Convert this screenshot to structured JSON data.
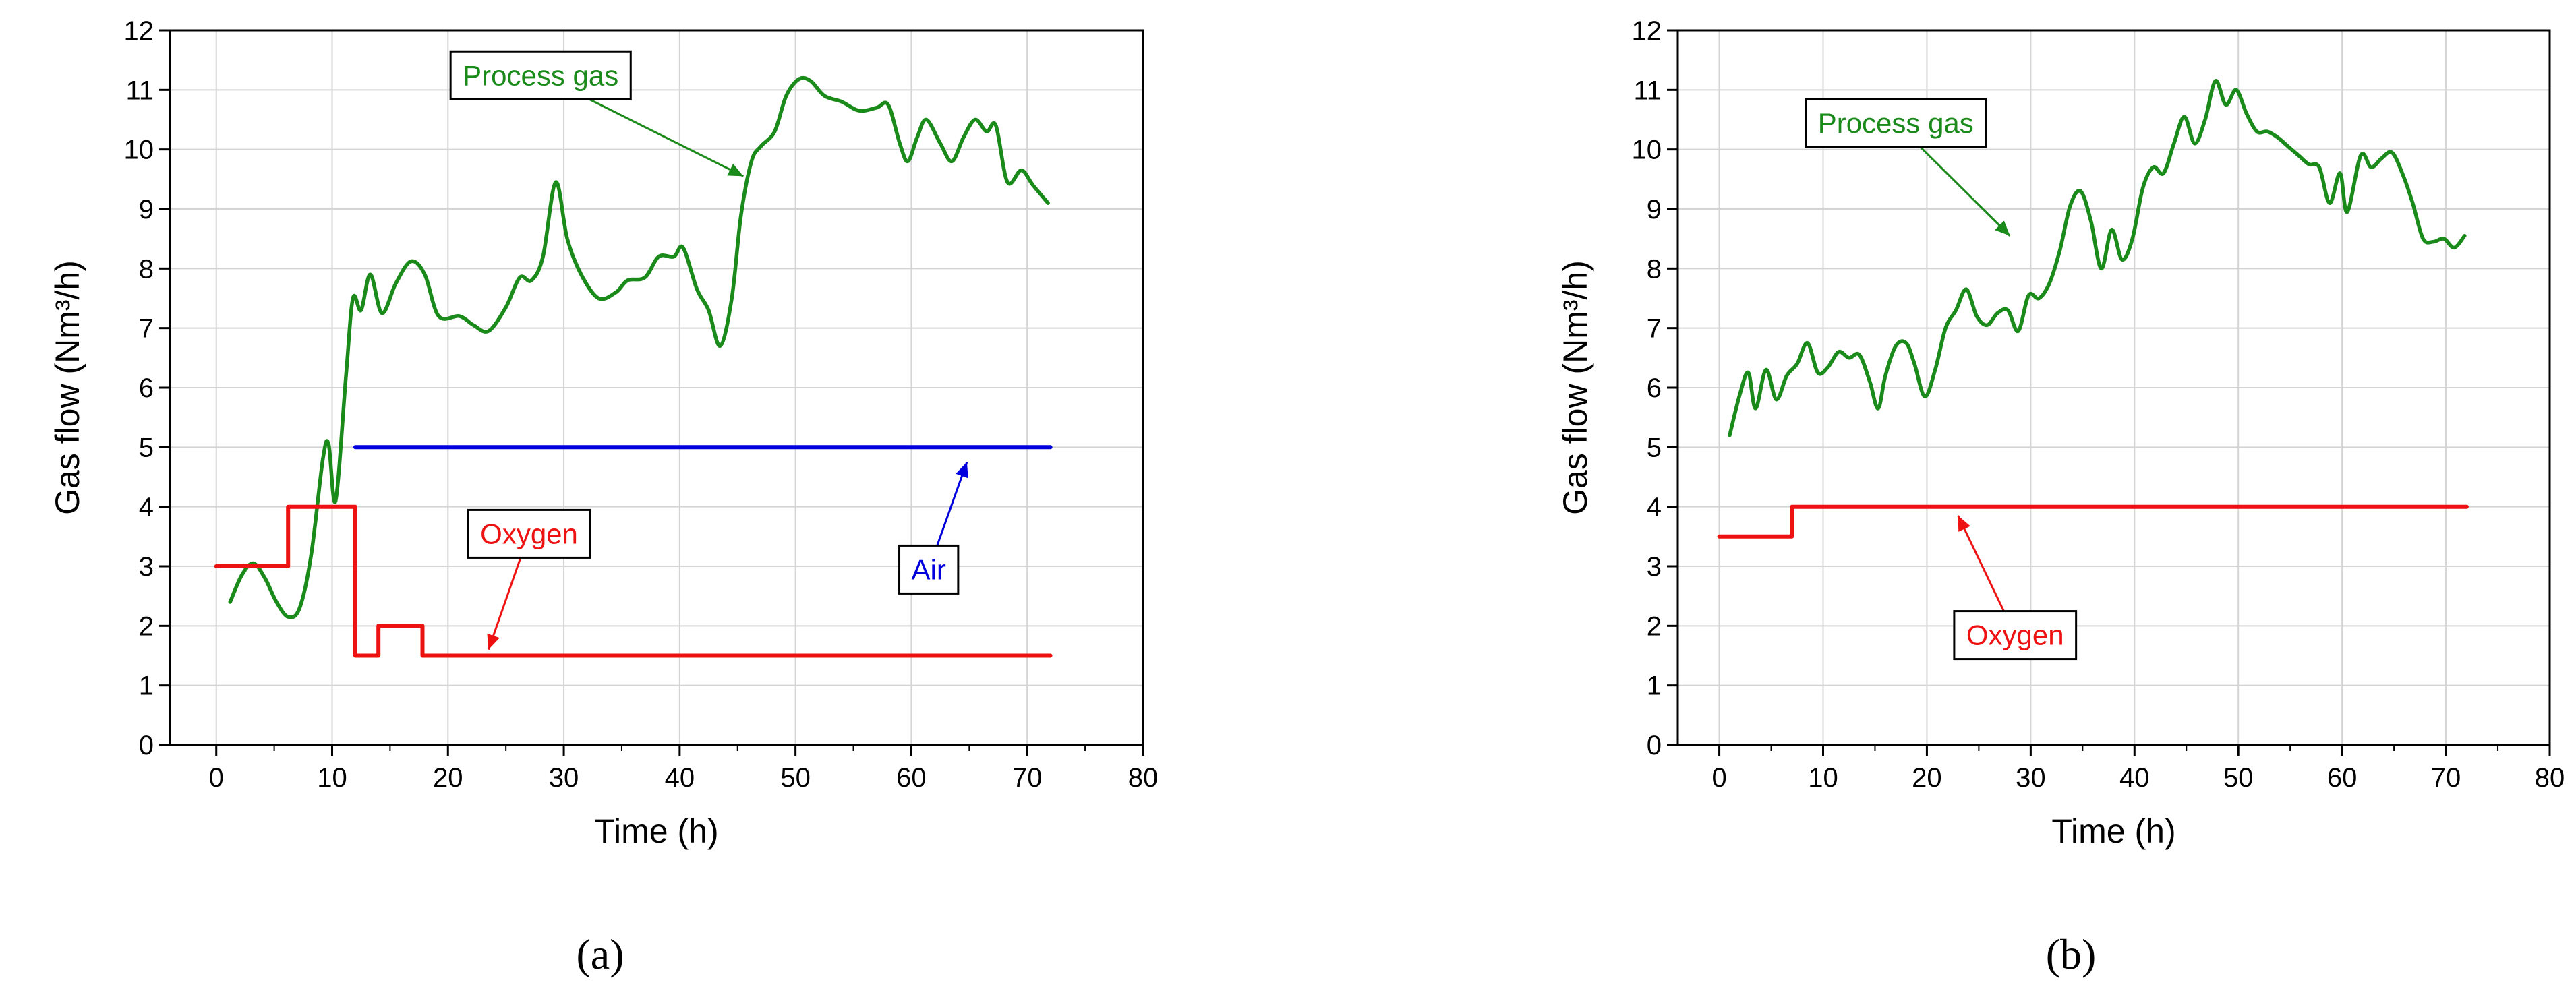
{
  "chart_data": [
    {
      "type": "line",
      "panel_label": "(a)",
      "xlabel": "Time (h)",
      "ylabel": "Gas flow (Nm³/h)",
      "xlim": [
        -4,
        80
      ],
      "ylim": [
        0,
        12
      ],
      "xticks": [
        0,
        10,
        20,
        30,
        40,
        50,
        60,
        70,
        80
      ],
      "yticks": [
        0,
        1,
        2,
        3,
        4,
        5,
        6,
        7,
        8,
        9,
        10,
        11,
        12
      ],
      "grid": true,
      "series": [
        {
          "name": "Process gas",
          "color": "#1a8a1a",
          "points": [
            [
              1.2,
              2.4
            ],
            [
              2.2,
              2.85
            ],
            [
              3.2,
              3.05
            ],
            [
              4.2,
              2.8
            ],
            [
              5.2,
              2.4
            ],
            [
              6.2,
              2.15
            ],
            [
              7.2,
              2.3
            ],
            [
              8.2,
              3.2
            ],
            [
              9.2,
              4.8
            ],
            [
              9.7,
              5.05
            ],
            [
              10.3,
              4.1
            ],
            [
              11.2,
              6.2
            ],
            [
              11.8,
              7.5
            ],
            [
              12.5,
              7.3
            ],
            [
              13.3,
              7.9
            ],
            [
              14.3,
              7.25
            ],
            [
              15.5,
              7.75
            ],
            [
              16.8,
              8.12
            ],
            [
              18,
              7.9
            ],
            [
              19.2,
              7.2
            ],
            [
              21,
              7.2
            ],
            [
              22.2,
              7.05
            ],
            [
              23.5,
              6.95
            ],
            [
              25,
              7.35
            ],
            [
              26.2,
              7.85
            ],
            [
              27.2,
              7.8
            ],
            [
              28.2,
              8.2
            ],
            [
              29.3,
              9.45
            ],
            [
              30.3,
              8.5
            ],
            [
              31.5,
              7.9
            ],
            [
              33,
              7.5
            ],
            [
              34.5,
              7.6
            ],
            [
              35.5,
              7.8
            ],
            [
              37,
              7.85
            ],
            [
              38.2,
              8.2
            ],
            [
              39.5,
              8.2
            ],
            [
              40.3,
              8.35
            ],
            [
              41.5,
              7.65
            ],
            [
              42.5,
              7.3
            ],
            [
              43.5,
              6.7
            ],
            [
              44.5,
              7.5
            ],
            [
              45.3,
              8.9
            ],
            [
              46.2,
              9.8
            ],
            [
              47,
              10.05
            ],
            [
              48.2,
              10.3
            ],
            [
              49.2,
              10.9
            ],
            [
              50.3,
              11.18
            ],
            [
              51.3,
              11.15
            ],
            [
              52.5,
              10.9
            ],
            [
              54,
              10.8
            ],
            [
              55.5,
              10.65
            ],
            [
              57,
              10.7
            ],
            [
              58,
              10.75
            ],
            [
              59,
              10.1
            ],
            [
              59.7,
              9.8
            ],
            [
              60.5,
              10.2
            ],
            [
              61.3,
              10.5
            ],
            [
              62.5,
              10.1
            ],
            [
              63.5,
              9.8
            ],
            [
              64.5,
              10.2
            ],
            [
              65.5,
              10.5
            ],
            [
              66.5,
              10.3
            ],
            [
              67.3,
              10.4
            ],
            [
              68.3,
              9.45
            ],
            [
              69.5,
              9.65
            ],
            [
              70.5,
              9.4
            ],
            [
              71.8,
              9.1
            ]
          ]
        },
        {
          "name": "Air",
          "color": "#0000dd",
          "points": [
            [
              12,
              5
            ],
            [
              72,
              5
            ]
          ]
        },
        {
          "name": "Oxygen",
          "color": "#ee1111",
          "points": [
            [
              0,
              3
            ],
            [
              6.2,
              3
            ],
            [
              6.2,
              4
            ],
            [
              12,
              4
            ],
            [
              12,
              1.5
            ],
            [
              14,
              1.5
            ],
            [
              14,
              2
            ],
            [
              17.8,
              2
            ],
            [
              17.8,
              1.5
            ],
            [
              72,
              1.5
            ]
          ]
        }
      ],
      "annotations": [
        {
          "text": "Process gas",
          "color": "#1a8a1a",
          "box": [
            28,
            11.25
          ],
          "arrow_to": [
            45.5,
            9.55
          ]
        },
        {
          "text": "Oxygen",
          "color": "#ee1111",
          "box": [
            27,
            3.55
          ],
          "arrow_to": [
            23.5,
            1.6
          ]
        },
        {
          "text": "Air",
          "color": "#0000dd",
          "box": [
            61.5,
            2.95
          ],
          "arrow_to": [
            64.8,
            4.75
          ]
        }
      ]
    },
    {
      "type": "line",
      "panel_label": "(b)",
      "xlabel": "Time (h)",
      "ylabel": "Gas flow (Nm³/h)",
      "xlim": [
        -4,
        80
      ],
      "ylim": [
        0,
        12
      ],
      "xticks": [
        0,
        10,
        20,
        30,
        40,
        50,
        60,
        70,
        80
      ],
      "yticks": [
        0,
        1,
        2,
        3,
        4,
        5,
        6,
        7,
        8,
        9,
        10,
        11,
        12
      ],
      "grid": true,
      "series": [
        {
          "name": "Process gas",
          "color": "#1a8a1a",
          "points": [
            [
              1,
              5.2
            ],
            [
              2,
              5.9
            ],
            [
              2.8,
              6.25
            ],
            [
              3.5,
              5.65
            ],
            [
              4.5,
              6.3
            ],
            [
              5.5,
              5.8
            ],
            [
              6.5,
              6.2
            ],
            [
              7.5,
              6.4
            ],
            [
              8.5,
              6.75
            ],
            [
              9.5,
              6.25
            ],
            [
              10.5,
              6.35
            ],
            [
              11.5,
              6.6
            ],
            [
              12.5,
              6.5
            ],
            [
              13.5,
              6.55
            ],
            [
              14.5,
              6.1
            ],
            [
              15.3,
              5.65
            ],
            [
              16,
              6.2
            ],
            [
              17,
              6.7
            ],
            [
              18,
              6.75
            ],
            [
              18.8,
              6.4
            ],
            [
              19.8,
              5.85
            ],
            [
              20.8,
              6.3
            ],
            [
              21.8,
              7
            ],
            [
              22.8,
              7.3
            ],
            [
              23.8,
              7.65
            ],
            [
              24.8,
              7.2
            ],
            [
              25.8,
              7.05
            ],
            [
              26.8,
              7.25
            ],
            [
              27.8,
              7.3
            ],
            [
              28.8,
              6.95
            ],
            [
              29.8,
              7.55
            ],
            [
              30.8,
              7.5
            ],
            [
              31.8,
              7.75
            ],
            [
              32.8,
              8.3
            ],
            [
              33.8,
              9.05
            ],
            [
              34.8,
              9.3
            ],
            [
              35.8,
              8.8
            ],
            [
              36.8,
              8
            ],
            [
              37.8,
              8.65
            ],
            [
              38.8,
              8.15
            ],
            [
              39.8,
              8.5
            ],
            [
              40.8,
              9.35
            ],
            [
              41.8,
              9.7
            ],
            [
              42.8,
              9.6
            ],
            [
              43.8,
              10.1
            ],
            [
              44.8,
              10.55
            ],
            [
              45.8,
              10.1
            ],
            [
              46.8,
              10.5
            ],
            [
              47.8,
              11.15
            ],
            [
              48.8,
              10.75
            ],
            [
              49.8,
              11
            ],
            [
              50.8,
              10.6
            ],
            [
              51.8,
              10.3
            ],
            [
              52.8,
              10.3
            ],
            [
              53.8,
              10.2
            ],
            [
              54.8,
              10.05
            ],
            [
              55.8,
              9.9
            ],
            [
              56.8,
              9.75
            ],
            [
              57.8,
              9.7
            ],
            [
              58.8,
              9.1
            ],
            [
              59.8,
              9.6
            ],
            [
              60.5,
              8.95
            ],
            [
              61.8,
              9.9
            ],
            [
              62.8,
              9.7
            ],
            [
              63.8,
              9.85
            ],
            [
              64.8,
              9.95
            ],
            [
              65.8,
              9.6
            ],
            [
              66.8,
              9.1
            ],
            [
              67.8,
              8.5
            ],
            [
              68.8,
              8.45
            ],
            [
              69.8,
              8.5
            ],
            [
              70.8,
              8.35
            ],
            [
              71.8,
              8.55
            ]
          ]
        },
        {
          "name": "Oxygen",
          "color": "#ee1111",
          "points": [
            [
              0,
              3.5
            ],
            [
              7,
              3.5
            ],
            [
              7,
              4
            ],
            [
              72,
              4
            ]
          ]
        }
      ],
      "annotations": [
        {
          "text": "Process gas",
          "color": "#1a8a1a",
          "box": [
            17,
            10.45
          ],
          "arrow_to": [
            28,
            8.55
          ]
        },
        {
          "text": "Oxygen",
          "color": "#ee1111",
          "box": [
            28.5,
            1.85
          ],
          "arrow_to": [
            23,
            3.85
          ]
        }
      ]
    }
  ]
}
